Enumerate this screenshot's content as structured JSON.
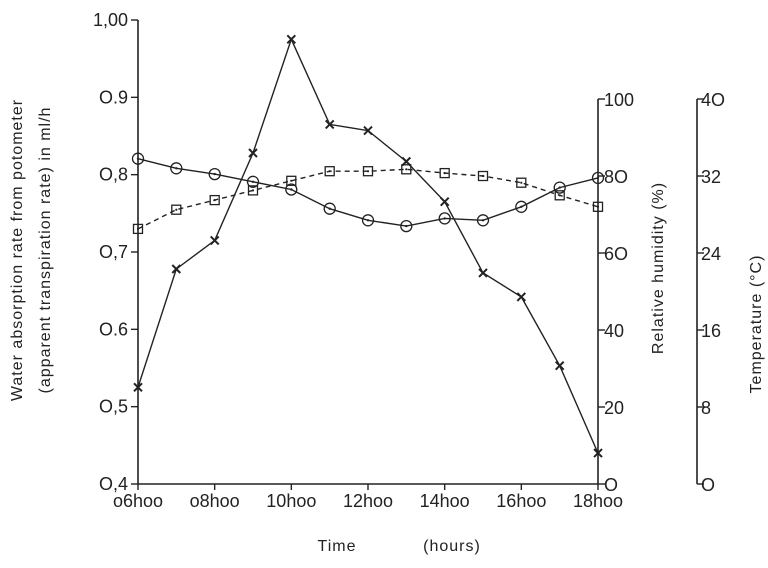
{
  "chart_data": {
    "type": "line",
    "xlabel": "Time",
    "xlabel_units": "(hours)",
    "x": [
      6,
      7,
      8,
      9,
      10,
      11,
      12,
      13,
      14,
      15,
      16,
      17,
      18
    ],
    "x_ticks": [
      6,
      8,
      10,
      12,
      14,
      16,
      18
    ],
    "x_tick_labels": [
      "o6hoo",
      "o8hoo",
      "10hoo",
      "12hoo",
      "14hoo",
      "16hoo",
      "18hoo"
    ],
    "axes": {
      "left": {
        "label_line1": "Water absorption rate from potometer",
        "label_line2": "(apparent transpiration rate) in ml/h",
        "range": [
          0.4,
          1.0
        ],
        "ticks": [
          0.4,
          0.5,
          0.6,
          0.7,
          0.8,
          0.9,
          1.0
        ],
        "tick_labels": [
          "O,4",
          "O,5",
          "O.6",
          "O,7",
          "O,8",
          "O.9",
          "1,00"
        ]
      },
      "humidity": {
        "label": "Relative humidity (%)",
        "range": [
          0,
          100
        ],
        "ticks": [
          0,
          20,
          40,
          60,
          80,
          100
        ],
        "tick_labels": [
          "O",
          "20",
          "40",
          "6O",
          "8O",
          "100"
        ]
      },
      "temperature": {
        "label": "Temperature (°C)",
        "range": [
          0,
          40
        ],
        "ticks": [
          0,
          8,
          16,
          24,
          32,
          40
        ],
        "tick_labels": [
          "O",
          "8",
          "16",
          "24",
          "32",
          "4O"
        ]
      }
    },
    "series": [
      {
        "marker": "cross",
        "axis": "left",
        "style": "solid",
        "values": [
          0.525,
          0.678,
          0.715,
          0.828,
          0.975,
          0.865,
          0.857,
          0.817,
          0.765,
          0.673,
          0.642,
          0.553,
          0.44
        ]
      },
      {
        "marker": "circle",
        "axis": "humidity",
        "style": "solid",
        "values": [
          84.5,
          82,
          80.5,
          78.5,
          76.5,
          71.5,
          68.5,
          67,
          69,
          68.5,
          72,
          77,
          79.5
        ]
      },
      {
        "marker": "square",
        "axis": "temperature",
        "style": "dashed",
        "values": [
          26.5,
          28.5,
          29.5,
          30.5,
          31.5,
          32.5,
          32.5,
          32.7,
          32.3,
          32,
          31.3,
          30,
          28.8
        ]
      }
    ]
  }
}
